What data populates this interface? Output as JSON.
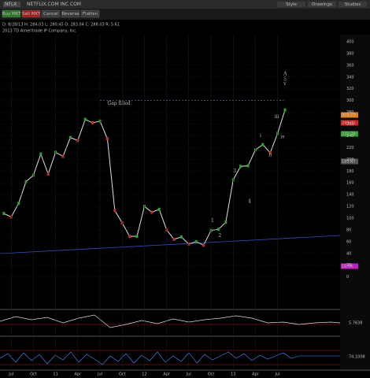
{
  "toolbar": {
    "symbol": "NFLX",
    "company": "NETFLIX.COM INC COM",
    "buttons": [
      "Buy MKT",
      "Sell MKT",
      "Cancel",
      "Reverse",
      "Flatten"
    ],
    "tools": [
      "Style",
      "Drawings",
      "Studies"
    ]
  },
  "info": {
    "quote": "D: 8/28/13  H: 284.03  L: 280.45  O: 283.04  C: 288.03  R: 5.61",
    "copyright": "2013 TD Ameritrade IP Company, Inc."
  },
  "chart_data": {
    "type": "line",
    "color": "#e0e0e0",
    "categories": [
      null,
      "Jul",
      null,
      null,
      "Oct",
      null,
      null,
      "11",
      null,
      null,
      "Apr",
      null,
      null,
      "Jul",
      null,
      null,
      "Oct",
      null,
      null,
      "12",
      null,
      null,
      "Apr",
      null,
      null,
      "Jul",
      null,
      null,
      "Oct",
      null,
      null,
      "13",
      null,
      null,
      "Apr",
      null,
      null,
      "Jul",
      null
    ],
    "values": [
      108,
      102,
      125,
      162,
      173,
      209,
      175,
      212,
      205,
      237,
      232,
      268,
      262,
      265,
      235,
      113,
      92,
      69,
      69,
      120,
      110,
      115,
      80,
      64,
      68,
      56,
      60,
      54,
      79,
      81,
      93,
      165,
      188,
      189,
      216,
      225,
      211,
      244,
      284
    ],
    "ylim": [
      -54,
      412
    ],
    "yticks": [
      0,
      20,
      40,
      60,
      80,
      100,
      120,
      140,
      160,
      180,
      200,
      220,
      240,
      260,
      280,
      300,
      320,
      340,
      360,
      380,
      400
    ],
    "grid": true,
    "gap_level": 300,
    "annotations": [
      "Gap filled",
      "1",
      "2",
      "3",
      "4",
      "i",
      "ii",
      "iii",
      "iv",
      "v",
      "A",
      "5"
    ],
    "price_tags": [
      {
        "text": "303.59",
        "color": "#e08020"
      },
      {
        "text": "249.01",
        "color": "#d02020"
      },
      {
        "text": "232.79",
        "color": "#30a030"
      },
      {
        "text": "183.67",
        "color": "#555555"
      },
      {
        "text": "15.56",
        "color": "#c020c0"
      }
    ],
    "oscillator_labels": [
      "5.7638",
      "74.1008"
    ]
  }
}
